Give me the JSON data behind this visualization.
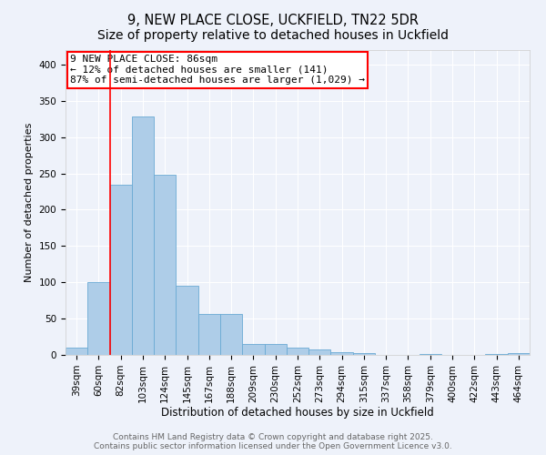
{
  "title_line1": "9, NEW PLACE CLOSE, UCKFIELD, TN22 5DR",
  "title_line2": "Size of property relative to detached houses in Uckfield",
  "xlabel": "Distribution of detached houses by size in Uckfield",
  "ylabel": "Number of detached properties",
  "categories": [
    "39sqm",
    "60sqm",
    "82sqm",
    "103sqm",
    "124sqm",
    "145sqm",
    "167sqm",
    "188sqm",
    "209sqm",
    "230sqm",
    "252sqm",
    "273sqm",
    "294sqm",
    "315sqm",
    "337sqm",
    "358sqm",
    "379sqm",
    "400sqm",
    "422sqm",
    "443sqm",
    "464sqm"
  ],
  "values": [
    10,
    100,
    235,
    328,
    248,
    95,
    57,
    57,
    15,
    15,
    10,
    8,
    4,
    2,
    0,
    0,
    1,
    0,
    0,
    1,
    2
  ],
  "bar_color": "#aecde8",
  "bar_edge_color": "#6aaad4",
  "highlight_index": 2,
  "annotation_line1": "9 NEW PLACE CLOSE: 86sqm",
  "annotation_line2": "← 12% of detached houses are smaller (141)",
  "annotation_line3": "87% of semi-detached houses are larger (1,029) →",
  "annotation_box_color": "white",
  "annotation_box_edge_color": "red",
  "red_line_color": "red",
  "ylim": [
    0,
    420
  ],
  "yticks": [
    0,
    50,
    100,
    150,
    200,
    250,
    300,
    350,
    400
  ],
  "footer_text": "Contains HM Land Registry data © Crown copyright and database right 2025.\nContains public sector information licensed under the Open Government Licence v3.0.",
  "background_color": "#eef2fa",
  "grid_color": "white",
  "title_fontsize": 10.5,
  "axis_label_fontsize": 8.5,
  "tick_fontsize": 7.5,
  "annotation_fontsize": 8,
  "footer_fontsize": 6.5,
  "ylabel_fontsize": 8
}
